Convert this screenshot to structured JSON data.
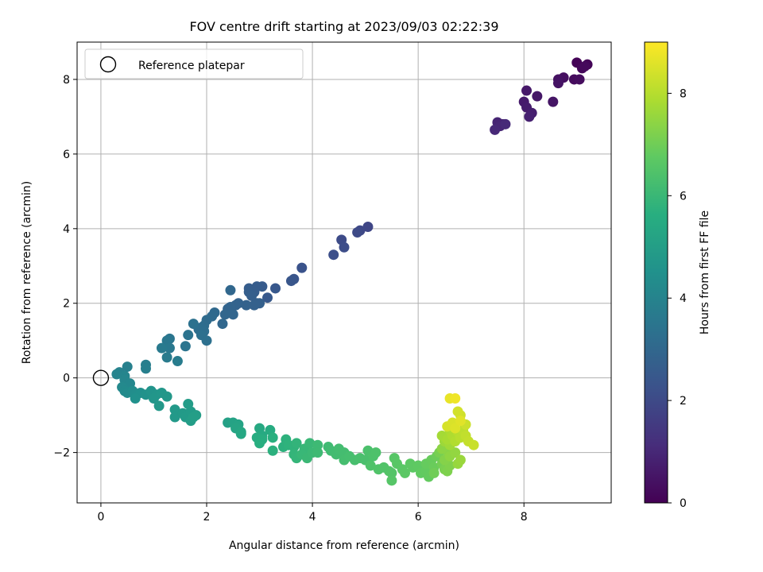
{
  "chart_data": {
    "type": "scatter",
    "title": "FOV centre drift starting at 2023/09/03 02:22:39",
    "xlabel": "Angular distance from reference (arcmin)",
    "ylabel": "Rotation from reference (arcmin)",
    "xlim": [
      -0.45,
      9.65
    ],
    "ylim": [
      -3.35,
      9.0
    ],
    "xticks": [
      "0",
      "2",
      "4",
      "6",
      "8"
    ],
    "yticks": [
      "−2",
      "0",
      "2",
      "4",
      "6",
      "8"
    ],
    "grid": true,
    "legend": {
      "placement": "top-left",
      "entries": [
        "Reference platepar"
      ]
    },
    "reference_point": {
      "x": 0,
      "y": 0
    },
    "colorbar": {
      "label": "Hours from first FF file",
      "range": [
        0,
        9
      ],
      "ticks": [
        "0",
        "2",
        "4",
        "6",
        "8"
      ],
      "colormap": "viridis"
    },
    "series": [
      {
        "color_variable": "hours",
        "points": [
          {
            "x": 9.0,
            "y": 8.45,
            "c": 0.05
          },
          {
            "x": 9.2,
            "y": 8.4,
            "c": 0.1
          },
          {
            "x": 9.1,
            "y": 8.3,
            "c": 0.15
          },
          {
            "x": 9.15,
            "y": 8.35,
            "c": 0.2
          },
          {
            "x": 8.95,
            "y": 8.0,
            "c": 0.25
          },
          {
            "x": 9.05,
            "y": 8.0,
            "c": 0.3
          },
          {
            "x": 8.75,
            "y": 8.05,
            "c": 0.35
          },
          {
            "x": 8.65,
            "y": 8.0,
            "c": 0.4
          },
          {
            "x": 8.65,
            "y": 7.9,
            "c": 0.45
          },
          {
            "x": 8.55,
            "y": 7.4,
            "c": 0.5
          },
          {
            "x": 8.25,
            "y": 7.55,
            "c": 0.55
          },
          {
            "x": 8.05,
            "y": 7.7,
            "c": 0.6
          },
          {
            "x": 8.0,
            "y": 7.4,
            "c": 0.65
          },
          {
            "x": 8.05,
            "y": 7.25,
            "c": 0.7
          },
          {
            "x": 8.15,
            "y": 7.1,
            "c": 0.75
          },
          {
            "x": 8.1,
            "y": 7.0,
            "c": 0.8
          },
          {
            "x": 7.6,
            "y": 6.8,
            "c": 0.85
          },
          {
            "x": 7.5,
            "y": 6.85,
            "c": 0.9
          },
          {
            "x": 7.55,
            "y": 6.75,
            "c": 0.95
          },
          {
            "x": 7.45,
            "y": 6.65,
            "c": 1.0
          },
          {
            "x": 7.65,
            "y": 6.8,
            "c": 1.05
          },
          {
            "x": 5.05,
            "y": 4.05,
            "c": 1.9
          },
          {
            "x": 4.9,
            "y": 3.95,
            "c": 1.95
          },
          {
            "x": 4.85,
            "y": 3.9,
            "c": 2.0
          },
          {
            "x": 4.55,
            "y": 3.7,
            "c": 2.05
          },
          {
            "x": 4.6,
            "y": 3.5,
            "c": 2.1
          },
          {
            "x": 4.4,
            "y": 3.3,
            "c": 2.15
          },
          {
            "x": 3.8,
            "y": 2.95,
            "c": 2.3
          },
          {
            "x": 3.65,
            "y": 2.65,
            "c": 2.35
          },
          {
            "x": 3.6,
            "y": 2.6,
            "c": 2.4
          },
          {
            "x": 3.3,
            "y": 2.4,
            "c": 2.45
          },
          {
            "x": 3.15,
            "y": 2.15,
            "c": 2.5
          },
          {
            "x": 3.05,
            "y": 2.45,
            "c": 2.55
          },
          {
            "x": 2.95,
            "y": 2.45,
            "c": 2.6
          },
          {
            "x": 2.9,
            "y": 2.3,
            "c": 2.62
          },
          {
            "x": 2.8,
            "y": 2.4,
            "c": 2.65
          },
          {
            "x": 2.8,
            "y": 2.3,
            "c": 2.68
          },
          {
            "x": 2.85,
            "y": 2.2,
            "c": 2.7
          },
          {
            "x": 2.95,
            "y": 2.0,
            "c": 2.72
          },
          {
            "x": 3.0,
            "y": 2.0,
            "c": 2.75
          },
          {
            "x": 2.9,
            "y": 1.95,
            "c": 2.78
          },
          {
            "x": 2.75,
            "y": 1.95,
            "c": 2.8
          },
          {
            "x": 2.6,
            "y": 2.0,
            "c": 2.82
          },
          {
            "x": 2.55,
            "y": 1.95,
            "c": 2.85
          },
          {
            "x": 2.45,
            "y": 1.9,
            "c": 2.88
          },
          {
            "x": 2.4,
            "y": 1.85,
            "c": 2.9
          },
          {
            "x": 2.5,
            "y": 1.7,
            "c": 2.92
          },
          {
            "x": 2.35,
            "y": 1.7,
            "c": 2.95
          },
          {
            "x": 2.45,
            "y": 2.35,
            "c": 2.98
          },
          {
            "x": 2.3,
            "y": 1.45,
            "c": 3.0
          },
          {
            "x": 2.15,
            "y": 1.75,
            "c": 3.05
          },
          {
            "x": 2.1,
            "y": 1.65,
            "c": 3.1
          },
          {
            "x": 2.0,
            "y": 1.55,
            "c": 3.12
          },
          {
            "x": 1.95,
            "y": 1.4,
            "c": 3.15
          },
          {
            "x": 1.9,
            "y": 1.35,
            "c": 3.2
          },
          {
            "x": 1.85,
            "y": 1.3,
            "c": 3.22
          },
          {
            "x": 1.95,
            "y": 1.25,
            "c": 3.25
          },
          {
            "x": 1.9,
            "y": 1.15,
            "c": 3.3
          },
          {
            "x": 2.0,
            "y": 1.0,
            "c": 3.32
          },
          {
            "x": 1.75,
            "y": 1.45,
            "c": 3.35
          },
          {
            "x": 1.65,
            "y": 1.15,
            "c": 3.4
          },
          {
            "x": 1.6,
            "y": 0.85,
            "c": 3.45
          },
          {
            "x": 1.3,
            "y": 1.05,
            "c": 3.5
          },
          {
            "x": 1.25,
            "y": 1.0,
            "c": 3.55
          },
          {
            "x": 1.3,
            "y": 0.8,
            "c": 3.6
          },
          {
            "x": 1.15,
            "y": 0.8,
            "c": 3.65
          },
          {
            "x": 1.25,
            "y": 0.55,
            "c": 3.7
          },
          {
            "x": 1.45,
            "y": 0.45,
            "c": 3.75
          },
          {
            "x": 0.85,
            "y": 0.35,
            "c": 3.8
          },
          {
            "x": 0.85,
            "y": 0.25,
            "c": 3.85
          },
          {
            "x": 0.5,
            "y": 0.3,
            "c": 3.9
          },
          {
            "x": 0.35,
            "y": 0.15,
            "c": 3.95
          },
          {
            "x": 0.3,
            "y": 0.1,
            "c": 4.0
          },
          {
            "x": 0.45,
            "y": 0.05,
            "c": 4.05
          },
          {
            "x": 0.45,
            "y": -0.05,
            "c": 4.1
          },
          {
            "x": 0.55,
            "y": -0.15,
            "c": 4.15
          },
          {
            "x": 0.4,
            "y": -0.25,
            "c": 4.2
          },
          {
            "x": 0.45,
            "y": -0.35,
            "c": 4.25
          },
          {
            "x": 0.5,
            "y": -0.4,
            "c": 4.3
          },
          {
            "x": 0.6,
            "y": -0.35,
            "c": 4.35
          },
          {
            "x": 0.65,
            "y": -0.45,
            "c": 4.4
          },
          {
            "x": 0.75,
            "y": -0.4,
            "c": 4.45
          },
          {
            "x": 0.65,
            "y": -0.55,
            "c": 4.5
          },
          {
            "x": 0.85,
            "y": -0.45,
            "c": 4.55
          },
          {
            "x": 0.95,
            "y": -0.35,
            "c": 4.6
          },
          {
            "x": 1.05,
            "y": -0.45,
            "c": 4.65
          },
          {
            "x": 1.0,
            "y": -0.55,
            "c": 4.7
          },
          {
            "x": 1.15,
            "y": -0.4,
            "c": 4.72
          },
          {
            "x": 1.25,
            "y": -0.5,
            "c": 4.75
          },
          {
            "x": 1.1,
            "y": -0.75,
            "c": 4.78
          },
          {
            "x": 1.4,
            "y": -0.85,
            "c": 4.8
          },
          {
            "x": 1.4,
            "y": -1.05,
            "c": 4.82
          },
          {
            "x": 1.55,
            "y": -0.95,
            "c": 4.85
          },
          {
            "x": 1.6,
            "y": -1.05,
            "c": 4.88
          },
          {
            "x": 1.7,
            "y": -0.9,
            "c": 4.9
          },
          {
            "x": 1.65,
            "y": -0.7,
            "c": 4.92
          },
          {
            "x": 1.7,
            "y": -1.15,
            "c": 4.95
          },
          {
            "x": 1.8,
            "y": -1.0,
            "c": 4.98
          },
          {
            "x": 1.75,
            "y": -1.05,
            "c": 5.0
          },
          {
            "x": 2.4,
            "y": -1.2,
            "c": 5.1
          },
          {
            "x": 2.5,
            "y": -1.2,
            "c": 5.15
          },
          {
            "x": 2.6,
            "y": -1.25,
            "c": 5.2
          },
          {
            "x": 2.55,
            "y": -1.35,
            "c": 5.25
          },
          {
            "x": 2.65,
            "y": -1.45,
            "c": 5.3
          },
          {
            "x": 2.65,
            "y": -1.5,
            "c": 5.35
          },
          {
            "x": 3.0,
            "y": -1.35,
            "c": 5.4
          },
          {
            "x": 3.05,
            "y": -1.55,
            "c": 5.45
          },
          {
            "x": 3.2,
            "y": -1.4,
            "c": 5.5
          },
          {
            "x": 2.95,
            "y": -1.6,
            "c": 5.55
          },
          {
            "x": 3.05,
            "y": -1.65,
            "c": 5.6
          },
          {
            "x": 3.0,
            "y": -1.75,
            "c": 5.62
          },
          {
            "x": 3.25,
            "y": -1.6,
            "c": 5.65
          },
          {
            "x": 3.25,
            "y": -1.95,
            "c": 5.7
          },
          {
            "x": 3.45,
            "y": -1.85,
            "c": 5.72
          },
          {
            "x": 3.5,
            "y": -1.65,
            "c": 5.75
          },
          {
            "x": 3.55,
            "y": -1.8,
            "c": 5.78
          },
          {
            "x": 3.65,
            "y": -1.85,
            "c": 5.8
          },
          {
            "x": 3.7,
            "y": -1.75,
            "c": 5.85
          },
          {
            "x": 3.65,
            "y": -2.05,
            "c": 5.88
          },
          {
            "x": 3.7,
            "y": -2.15,
            "c": 5.9
          },
          {
            "x": 3.85,
            "y": -1.9,
            "c": 5.95
          },
          {
            "x": 3.8,
            "y": -2.05,
            "c": 5.98
          },
          {
            "x": 3.95,
            "y": -1.75,
            "c": 6.0
          },
          {
            "x": 3.9,
            "y": -2.15,
            "c": 6.02
          },
          {
            "x": 4.0,
            "y": -2.0,
            "c": 6.05
          },
          {
            "x": 4.1,
            "y": -1.8,
            "c": 6.08
          },
          {
            "x": 4.1,
            "y": -2.0,
            "c": 6.1
          },
          {
            "x": 4.3,
            "y": -1.85,
            "c": 6.12
          },
          {
            "x": 4.35,
            "y": -1.95,
            "c": 6.15
          },
          {
            "x": 4.45,
            "y": -2.05,
            "c": 6.18
          },
          {
            "x": 4.5,
            "y": -1.9,
            "c": 6.2
          },
          {
            "x": 4.6,
            "y": -2.0,
            "c": 6.22
          },
          {
            "x": 4.6,
            "y": -2.2,
            "c": 6.25
          },
          {
            "x": 4.7,
            "y": -2.1,
            "c": 6.28
          },
          {
            "x": 4.8,
            "y": -2.2,
            "c": 6.3
          },
          {
            "x": 4.9,
            "y": -2.15,
            "c": 6.32
          },
          {
            "x": 5.0,
            "y": -2.2,
            "c": 6.35
          },
          {
            "x": 5.05,
            "y": -1.95,
            "c": 6.38
          },
          {
            "x": 5.15,
            "y": -2.1,
            "c": 6.4
          },
          {
            "x": 5.2,
            "y": -2.0,
            "c": 6.42
          },
          {
            "x": 5.1,
            "y": -2.35,
            "c": 6.45
          },
          {
            "x": 5.25,
            "y": -2.45,
            "c": 6.48
          },
          {
            "x": 5.35,
            "y": -2.4,
            "c": 6.5
          },
          {
            "x": 5.45,
            "y": -2.5,
            "c": 6.52
          },
          {
            "x": 5.5,
            "y": -2.55,
            "c": 6.55
          },
          {
            "x": 5.5,
            "y": -2.75,
            "c": 6.58
          },
          {
            "x": 5.55,
            "y": -2.15,
            "c": 6.6
          },
          {
            "x": 5.6,
            "y": -2.3,
            "c": 6.62
          },
          {
            "x": 5.7,
            "y": -2.45,
            "c": 6.65
          },
          {
            "x": 5.75,
            "y": -2.55,
            "c": 6.68
          },
          {
            "x": 5.85,
            "y": -2.3,
            "c": 6.7
          },
          {
            "x": 5.9,
            "y": -2.4,
            "c": 6.72
          },
          {
            "x": 6.0,
            "y": -2.35,
            "c": 6.75
          },
          {
            "x": 6.05,
            "y": -2.55,
            "c": 6.78
          },
          {
            "x": 6.15,
            "y": -2.5,
            "c": 6.8
          },
          {
            "x": 6.2,
            "y": -2.65,
            "c": 6.82
          },
          {
            "x": 6.15,
            "y": -2.3,
            "c": 6.85
          },
          {
            "x": 6.25,
            "y": -2.2,
            "c": 6.88
          },
          {
            "x": 6.3,
            "y": -2.4,
            "c": 6.9
          },
          {
            "x": 6.35,
            "y": -2.1,
            "c": 6.95
          },
          {
            "x": 6.3,
            "y": -2.55,
            "c": 7.0
          },
          {
            "x": 6.45,
            "y": -2.3,
            "c": 7.05
          },
          {
            "x": 6.4,
            "y": -2.0,
            "c": 7.1
          },
          {
            "x": 6.5,
            "y": -2.45,
            "c": 7.15
          },
          {
            "x": 6.55,
            "y": -2.5,
            "c": 7.2
          },
          {
            "x": 6.6,
            "y": -2.35,
            "c": 7.25
          },
          {
            "x": 6.5,
            "y": -2.2,
            "c": 7.3
          },
          {
            "x": 6.55,
            "y": -1.95,
            "c": 7.35
          },
          {
            "x": 6.45,
            "y": -1.9,
            "c": 7.4
          },
          {
            "x": 6.6,
            "y": -2.1,
            "c": 7.45
          },
          {
            "x": 6.7,
            "y": -2.0,
            "c": 7.5
          },
          {
            "x": 6.75,
            "y": -2.3,
            "c": 7.55
          },
          {
            "x": 6.8,
            "y": -2.2,
            "c": 7.6
          },
          {
            "x": 6.5,
            "y": -1.7,
            "c": 7.65
          },
          {
            "x": 6.6,
            "y": -1.8,
            "c": 7.7
          },
          {
            "x": 6.45,
            "y": -1.55,
            "c": 7.75
          },
          {
            "x": 6.55,
            "y": -1.65,
            "c": 7.8
          },
          {
            "x": 6.6,
            "y": -1.4,
            "c": 7.85
          },
          {
            "x": 6.65,
            "y": -1.55,
            "c": 7.9
          },
          {
            "x": 6.7,
            "y": -1.7,
            "c": 7.95
          },
          {
            "x": 6.75,
            "y": -1.45,
            "c": 8.0
          },
          {
            "x": 6.8,
            "y": -1.6,
            "c": 8.05
          },
          {
            "x": 6.85,
            "y": -1.4,
            "c": 8.1
          },
          {
            "x": 6.9,
            "y": -1.55,
            "c": 8.15
          },
          {
            "x": 6.95,
            "y": -1.7,
            "c": 8.2
          },
          {
            "x": 7.05,
            "y": -1.8,
            "c": 8.25
          },
          {
            "x": 6.9,
            "y": -1.25,
            "c": 8.3
          },
          {
            "x": 6.8,
            "y": -1.0,
            "c": 8.35
          },
          {
            "x": 6.75,
            "y": -0.9,
            "c": 8.4
          },
          {
            "x": 6.55,
            "y": -1.3,
            "c": 8.45
          },
          {
            "x": 6.65,
            "y": -1.2,
            "c": 8.5
          },
          {
            "x": 6.7,
            "y": -1.35,
            "c": 8.55
          },
          {
            "x": 6.8,
            "y": -1.15,
            "c": 8.6
          },
          {
            "x": 6.6,
            "y": -0.55,
            "c": 8.7
          },
          {
            "x": 6.7,
            "y": -0.55,
            "c": 8.8
          }
        ]
      }
    ]
  }
}
